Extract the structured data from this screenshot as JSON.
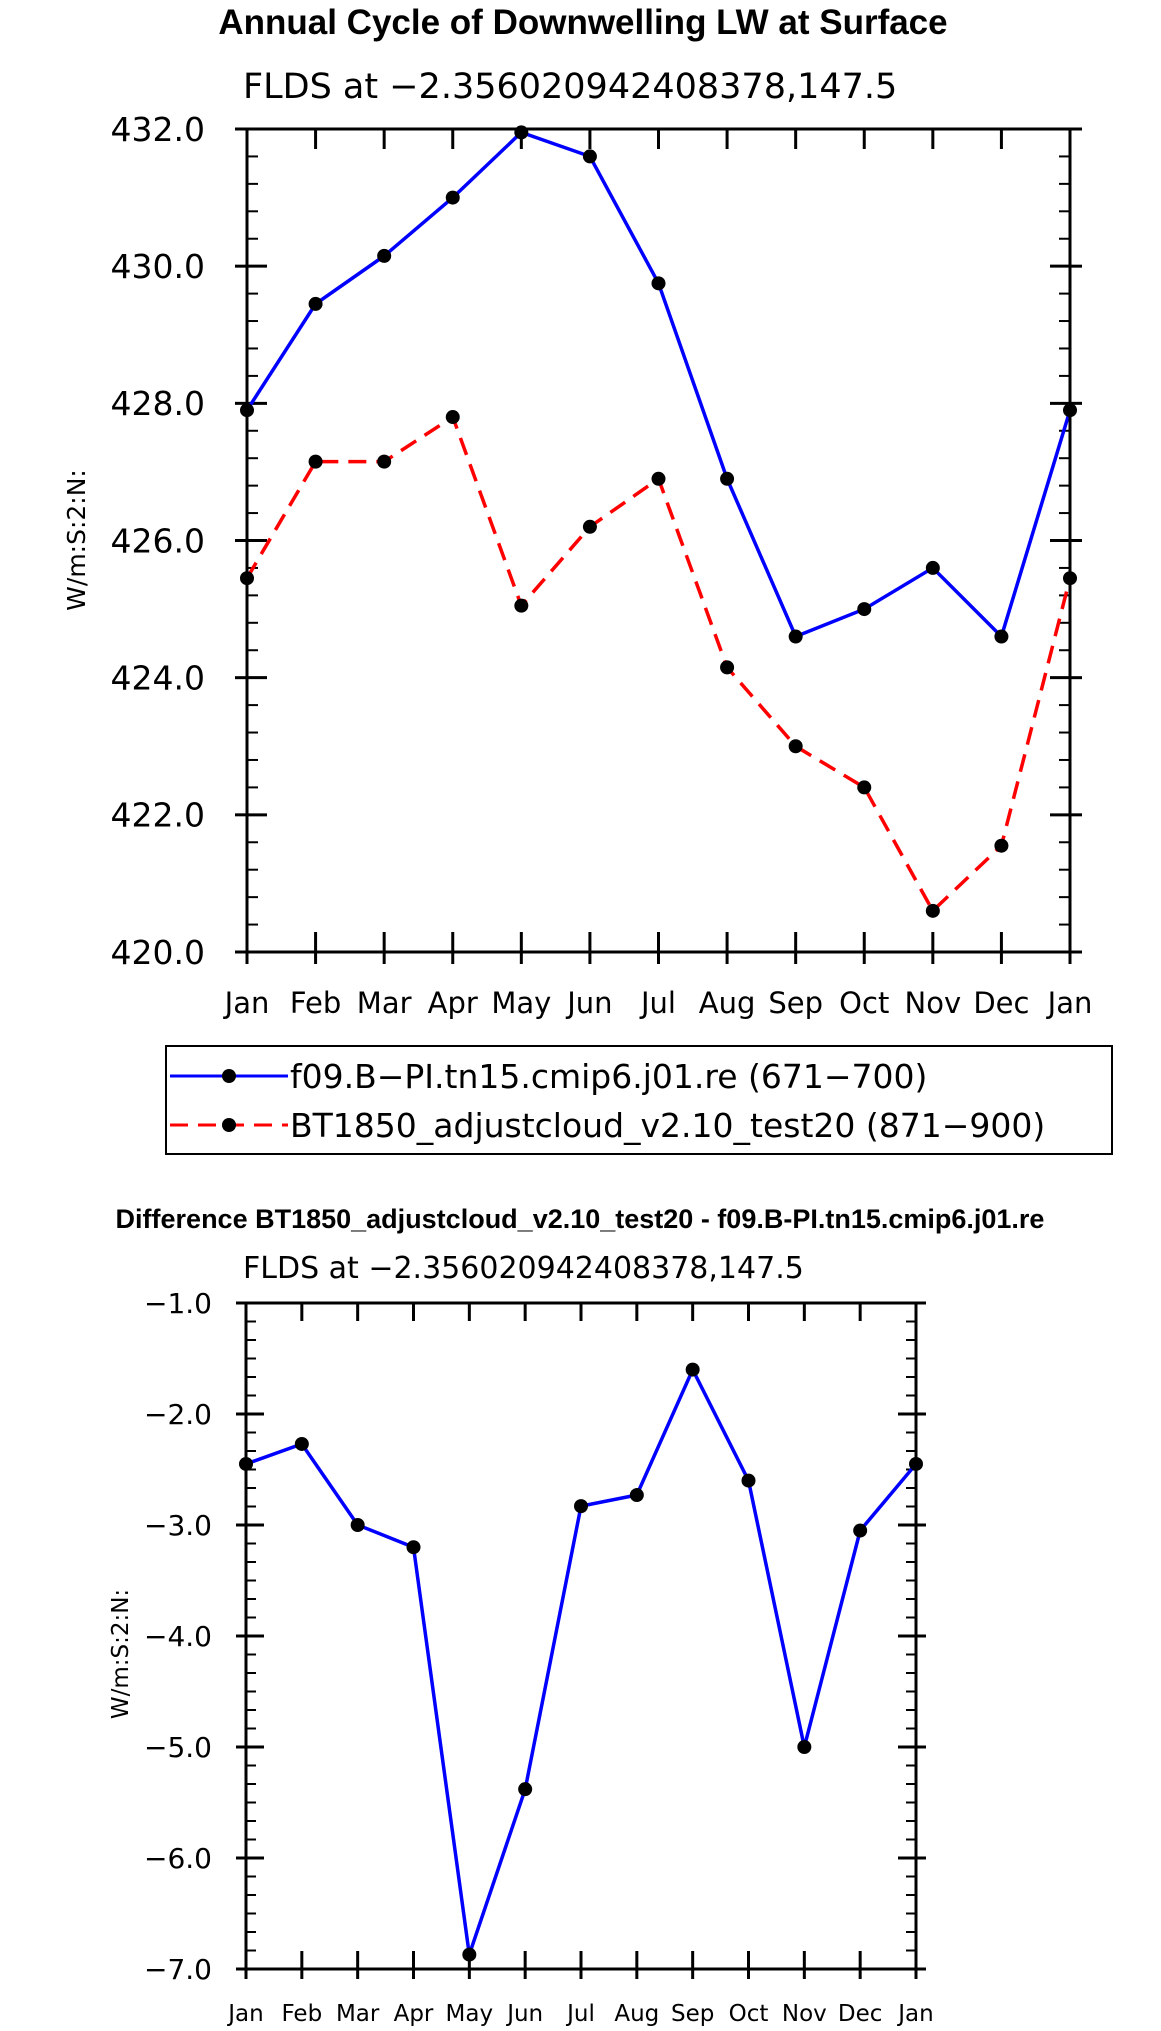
{
  "chart_data": [
    {
      "type": "line",
      "title": "Annual Cycle of Downwelling LW at Surface",
      "subtitle": "FLDS at −2.356020942408378,147.5",
      "ylabel": "W/m:S:2:N:",
      "xlabel": "",
      "ylim": [
        420,
        432
      ],
      "yticks": [
        420,
        422,
        424,
        426,
        428,
        430,
        432
      ],
      "ytick_labels": [
        "420.0",
        "422.0",
        "424.0",
        "426.0",
        "428.0",
        "430.0",
        "432.0"
      ],
      "categories": [
        "Jan",
        "Feb",
        "Mar",
        "Apr",
        "May",
        "Jun",
        "Jul",
        "Aug",
        "Sep",
        "Oct",
        "Nov",
        "Dec",
        "Jan"
      ],
      "series": [
        {
          "name": "f09.B−PI.tn15.cmip6.j01.re (671−700)",
          "color": "#0000ff",
          "dash": "solid",
          "values": [
            427.9,
            429.45,
            430.15,
            431.0,
            431.95,
            431.6,
            429.75,
            426.9,
            424.6,
            425.0,
            425.6,
            424.6,
            427.9
          ]
        },
        {
          "name": "BT1850_adjustcloud_v2.10_test20 (871−900)",
          "color": "#ff0000",
          "dash": "dashed",
          "values": [
            425.45,
            427.15,
            427.15,
            427.8,
            425.05,
            426.2,
            426.9,
            424.15,
            423.0,
            422.4,
            420.6,
            421.55,
            425.45
          ]
        }
      ],
      "legend": "below"
    },
    {
      "type": "line",
      "title": "Difference BT1850_adjustcloud_v2.10_test20 - f09.B-PI.tn15.cmip6.j01.re",
      "subtitle": "FLDS at −2.356020942408378,147.5",
      "ylabel": "W/m:S:2:N:",
      "xlabel": "",
      "ylim": [
        -7,
        -1
      ],
      "yticks": [
        -7,
        -6,
        -5,
        -4,
        -3,
        -2,
        -1
      ],
      "ytick_labels": [
        "−7.0",
        "−6.0",
        "−5.0",
        "−4.0",
        "−3.0",
        "−2.0",
        "−1.0"
      ],
      "categories": [
        "Jan",
        "Feb",
        "Mar",
        "Apr",
        "May",
        "Jun",
        "Jul",
        "Aug",
        "Sep",
        "Oct",
        "Nov",
        "Dec",
        "Jan"
      ],
      "series": [
        {
          "name": "Difference",
          "color": "#0000ff",
          "dash": "solid",
          "values": [
            -2.45,
            -2.27,
            -3.0,
            -3.2,
            -6.87,
            -5.38,
            -2.83,
            -2.73,
            -1.6,
            -2.6,
            -5.0,
            -3.05,
            -2.45
          ]
        }
      ]
    }
  ]
}
